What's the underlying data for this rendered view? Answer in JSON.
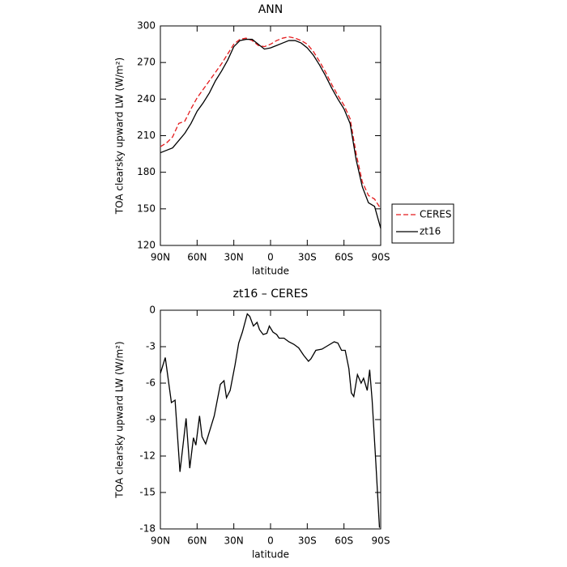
{
  "chart_data": [
    {
      "type": "line",
      "title": "ANN",
      "x_label": "latitude",
      "y_label": "TOA clearsky upward LW (W/m²)",
      "xlim": [
        90,
        -90
      ],
      "ylim": [
        120,
        300
      ],
      "xticks": [
        {
          "value": 90,
          "label": "90N"
        },
        {
          "value": 60,
          "label": "60N"
        },
        {
          "value": 30,
          "label": "30N"
        },
        0,
        {
          "value": -30,
          "label": "30S"
        },
        {
          "value": -60,
          "label": "60S"
        },
        {
          "value": -90,
          "label": "90S"
        }
      ],
      "yticks": [
        120,
        150,
        180,
        210,
        240,
        270,
        300
      ],
      "legend": "outside right bottom",
      "x": [
        90,
        85,
        80,
        75,
        70,
        65,
        60,
        55,
        50,
        45,
        40,
        35,
        30,
        25,
        20,
        15,
        10,
        5,
        0,
        -5,
        -10,
        -15,
        -20,
        -25,
        -30,
        -35,
        -40,
        -45,
        -50,
        -55,
        -60,
        -65,
        -70,
        -75,
        -80,
        -85,
        -90
      ],
      "series": [
        {
          "name": "CERES",
          "color": "#e41a1c",
          "dash": true,
          "values": [
            201,
            204,
            209,
            220,
            222,
            232,
            241,
            248,
            255,
            262,
            269,
            277,
            285,
            289,
            290,
            288,
            284,
            283,
            285,
            288,
            290,
            291,
            290,
            288,
            285,
            279,
            271,
            262,
            252,
            243,
            235,
            224,
            195,
            172,
            161,
            158,
            150
          ]
        },
        {
          "name": "zt16",
          "color": "#000000",
          "dash": false,
          "values": [
            196,
            198,
            200,
            206,
            212,
            220,
            230,
            237,
            245,
            255,
            263,
            272,
            283,
            288,
            289,
            289,
            285,
            281,
            282,
            284,
            286,
            288,
            288,
            286,
            282,
            276,
            268,
            259,
            249,
            240,
            232,
            220,
            190,
            168,
            155,
            152,
            134
          ]
        }
      ]
    },
    {
      "type": "line",
      "title": "zt16 – CERES",
      "x_label": "latitude",
      "y_label": "TOA clearsky upward LW (W/m²)",
      "xlim": [
        90,
        -90
      ],
      "ylim": [
        -18,
        0
      ],
      "xticks": [
        {
          "value": 90,
          "label": "90N"
        },
        {
          "value": 60,
          "label": "60N"
        },
        {
          "value": 30,
          "label": "30N"
        },
        0,
        {
          "value": -30,
          "label": "30S"
        },
        {
          "value": -60,
          "label": "60S"
        },
        {
          "value": -90,
          "label": "90S"
        }
      ],
      "yticks": [
        -18,
        -15,
        -12,
        -9,
        -6,
        -3,
        0
      ],
      "x": [
        90,
        86,
        81,
        78,
        74,
        69,
        66,
        63,
        61,
        58,
        56,
        53,
        46,
        41,
        38,
        36,
        33,
        29,
        26,
        23,
        19,
        17,
        14,
        11,
        9,
        6,
        3,
        1,
        -2,
        -5,
        -7,
        -11,
        -15,
        -19,
        -23,
        -27,
        -31,
        -33,
        -37,
        -42,
        -47,
        -52,
        -55,
        -58,
        -61,
        -64,
        -66,
        -68,
        -71,
        -74,
        -76,
        -79,
        -81,
        -83,
        -86,
        -89
      ],
      "series": [
        {
          "color": "#000000",
          "dash": false,
          "values": [
            -5.2,
            -3.9,
            -7.6,
            -7.4,
            -13.3,
            -8.9,
            -13,
            -10.5,
            -11.1,
            -8.7,
            -10.4,
            -11,
            -8.7,
            -6.1,
            -5.8,
            -7.2,
            -6.6,
            -4.5,
            -2.7,
            -1.8,
            -0.3,
            -0.5,
            -1.3,
            -1,
            -1.6,
            -2,
            -1.9,
            -1.3,
            -1.8,
            -2,
            -2.3,
            -2.3,
            -2.6,
            -2.8,
            -3.1,
            -3.7,
            -4.2,
            -4,
            -3.3,
            -3.2,
            -2.9,
            -2.6,
            -2.7,
            -3.3,
            -3.3,
            -4.8,
            -6.8,
            -7.1,
            -5.3,
            -6,
            -5.6,
            -6.6,
            -4.9,
            -7.4,
            -12.5,
            -17.9
          ]
        }
      ]
    }
  ]
}
